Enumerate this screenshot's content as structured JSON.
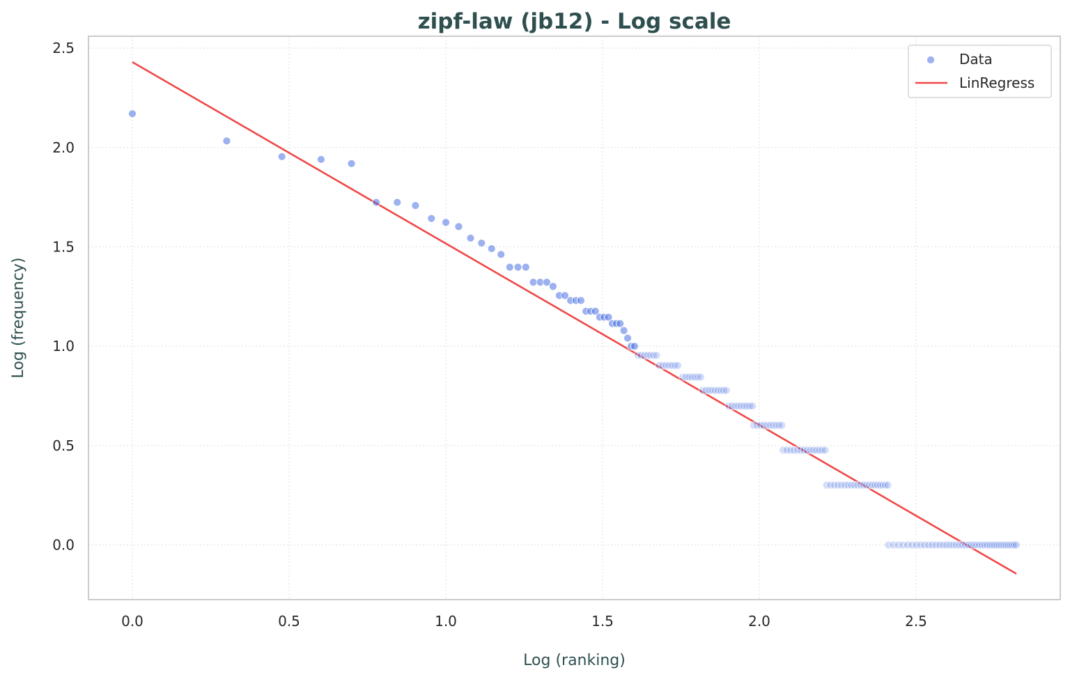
{
  "chart_data": {
    "type": "scatter",
    "title": "zipf-law (jb12) - Log scale",
    "xlabel": "Log (ranking)",
    "ylabel": "Log (frequency)",
    "xlim": [
      -0.14,
      2.96
    ],
    "ylim": [
      -0.275,
      2.56
    ],
    "x_ticks": [
      0.0,
      0.5,
      1.0,
      1.5,
      2.0,
      2.5
    ],
    "x_tick_labels": [
      "0.0",
      "0.5",
      "1.0",
      "1.5",
      "2.0",
      "2.5"
    ],
    "y_ticks": [
      0.0,
      0.5,
      1.0,
      1.5,
      2.0,
      2.5
    ],
    "y_tick_labels": [
      "0.0",
      "0.5",
      "1.0",
      "1.5",
      "2.0",
      "2.5"
    ],
    "grid": true,
    "legend_position": "upper right",
    "legend": [
      {
        "label": "Data",
        "kind": "marker",
        "color": "#4169e1"
      },
      {
        "label": "LinRegress",
        "kind": "line",
        "color": "#f04747"
      }
    ],
    "colors": {
      "data": "#4169e1",
      "regression": "#f04747",
      "title": "#2f4f4f"
    },
    "series": [
      {
        "name": "Data",
        "kind": "scatter",
        "x": [
          0.0,
          0.301,
          0.477,
          0.602,
          0.699,
          0.778,
          0.845,
          0.903,
          0.954,
          1.0,
          1.041,
          1.079,
          1.114,
          1.146,
          1.176,
          1.204,
          1.23,
          1.255,
          1.279,
          1.301,
          1.322,
          1.342,
          1.362,
          1.38,
          1.398,
          1.415,
          1.431,
          1.447,
          1.462,
          1.477,
          1.491,
          1.505,
          1.519,
          1.531,
          1.544,
          1.556,
          1.568,
          1.58,
          1.591,
          1.602
        ],
        "y": [
          2.17,
          2.033,
          1.954,
          1.94,
          1.919,
          1.724,
          1.724,
          1.708,
          1.643,
          1.623,
          1.602,
          1.544,
          1.519,
          1.491,
          1.462,
          1.398,
          1.398,
          1.398,
          1.322,
          1.322,
          1.322,
          1.301,
          1.255,
          1.255,
          1.23,
          1.23,
          1.23,
          1.176,
          1.176,
          1.176,
          1.146,
          1.146,
          1.146,
          1.114,
          1.114,
          1.114,
          1.079,
          1.041,
          1.0,
          1.0
        ]
      },
      {
        "name": "Data",
        "kind": "plateaus",
        "plateaus": [
          {
            "y": 0.954,
            "x_start": 1.613,
            "x_end": 1.672
          },
          {
            "y": 0.903,
            "x_start": 1.681,
            "x_end": 1.74
          },
          {
            "y": 0.845,
            "x_start": 1.756,
            "x_end": 1.813
          },
          {
            "y": 0.778,
            "x_start": 1.82,
            "x_end": 1.895
          },
          {
            "y": 0.699,
            "x_start": 1.903,
            "x_end": 1.978
          },
          {
            "y": 0.602,
            "x_start": 1.982,
            "x_end": 2.072
          },
          {
            "y": 0.477,
            "x_start": 2.076,
            "x_end": 2.21
          },
          {
            "y": 0.301,
            "x_start": 2.215,
            "x_end": 2.41
          },
          {
            "y": 0.0,
            "x_start": 2.412,
            "x_end": 2.82
          }
        ]
      },
      {
        "name": "LinRegress",
        "kind": "line",
        "x": [
          0.0,
          2.82
        ],
        "y": [
          2.43,
          -0.145
        ]
      }
    ]
  }
}
